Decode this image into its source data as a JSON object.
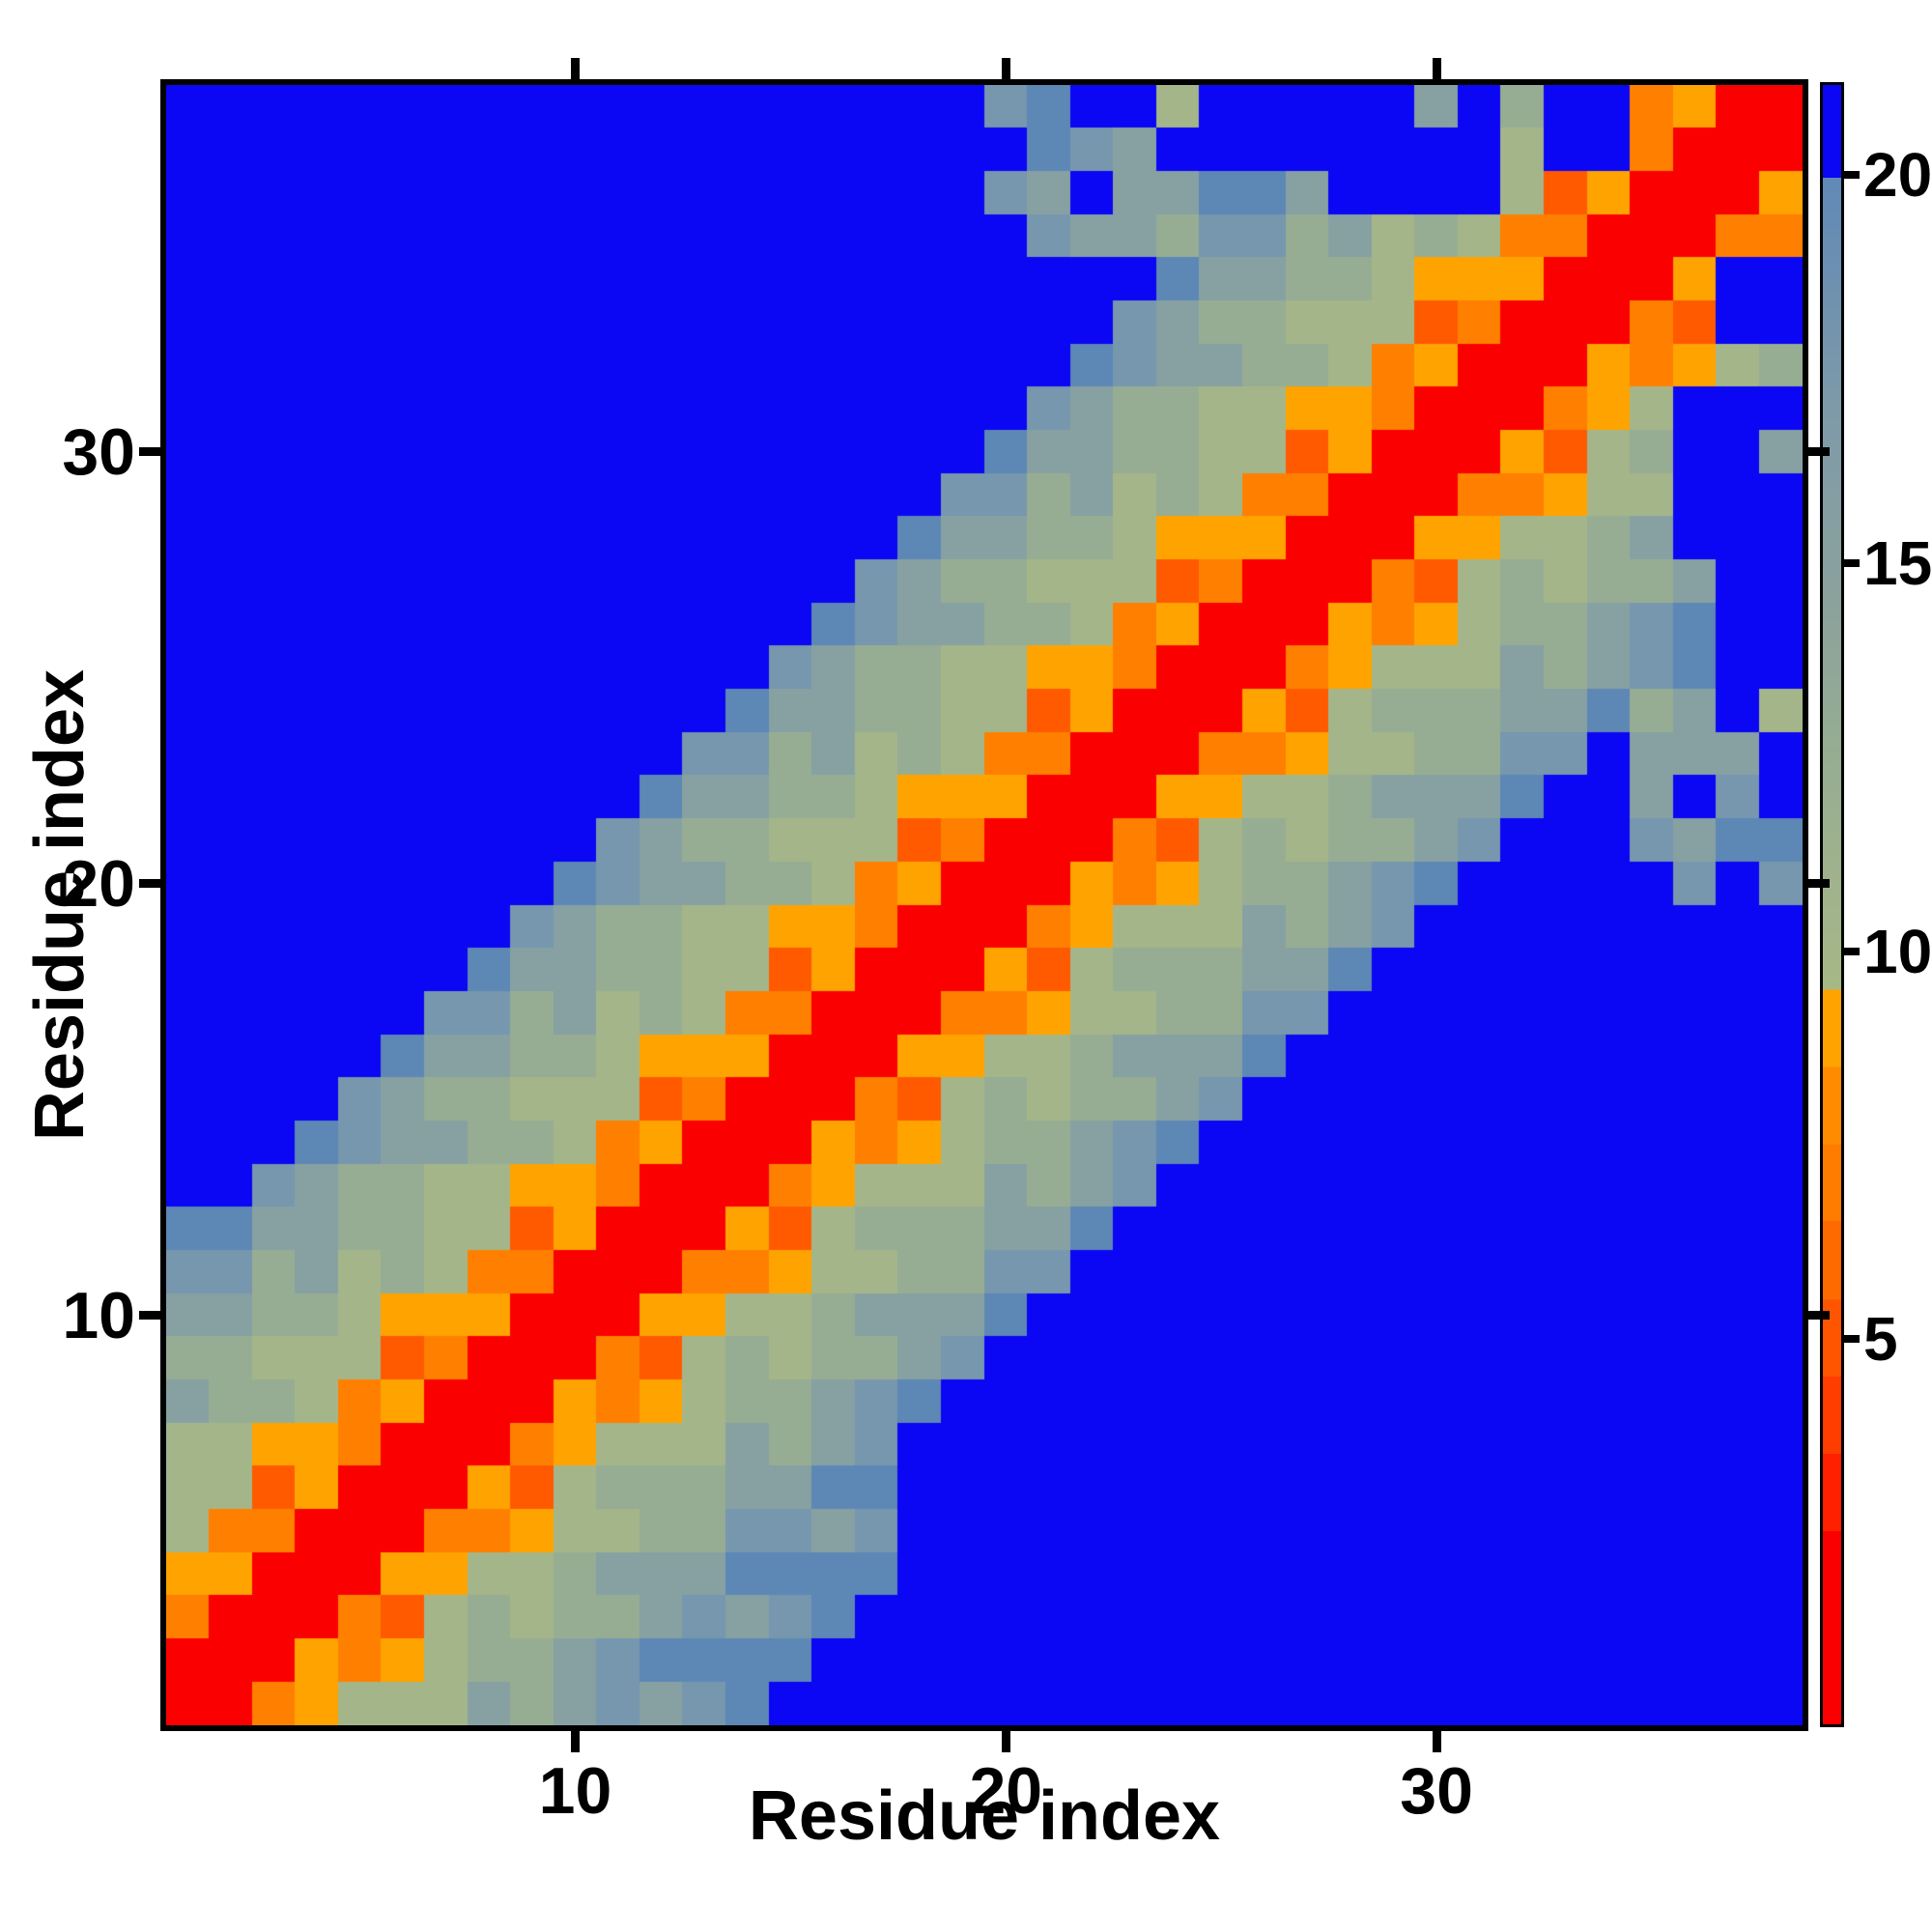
{
  "chart_data": {
    "type": "heatmap",
    "title": "",
    "xlabel": "Residue index",
    "ylabel": "Residue index",
    "n_residues": 38,
    "x_ticks": [
      10,
      20,
      30
    ],
    "y_ticks": [
      10,
      20,
      30
    ],
    "axis_range": [
      0.5,
      38.5
    ],
    "grid": false,
    "colorbar": {
      "position": "right",
      "ticks": [
        5,
        10,
        15,
        20
      ],
      "vmin": 0.0,
      "vmax": 21.2,
      "over_color_note": "values above 20 rendered solid blue",
      "gradient_stops": [
        [
          0.0,
          "#0b06f3"
        ],
        [
          0.0566,
          "#0b06f3"
        ],
        [
          0.0566,
          "#6089b6"
        ],
        [
          0.198,
          "#7e9aa9"
        ],
        [
          0.316,
          "#8ba29c"
        ],
        [
          0.41,
          "#97ad92"
        ],
        [
          0.505,
          "#a1b48b"
        ],
        [
          0.552,
          "#a7b885"
        ],
        [
          0.552,
          "#ffa300"
        ],
        [
          0.599,
          "#ffa300"
        ],
        [
          0.599,
          "#ff8c00"
        ],
        [
          0.646,
          "#ff8c00"
        ],
        [
          0.646,
          "#ff7c00"
        ],
        [
          0.693,
          "#ff7c00"
        ],
        [
          0.693,
          "#ff6a00"
        ],
        [
          0.741,
          "#ff6a00"
        ],
        [
          0.741,
          "#ff5500"
        ],
        [
          0.788,
          "#ff5500"
        ],
        [
          0.788,
          "#ff3d00"
        ],
        [
          0.835,
          "#ff3d00"
        ],
        [
          0.835,
          "#ff2000"
        ],
        [
          0.882,
          "#ff2000"
        ],
        [
          0.882,
          "#fb0000"
        ],
        [
          1.0,
          "#fb0000"
        ]
      ]
    },
    "palette": {
      "R": {
        "color": "#fb0000",
        "approx_value": 2.0
      },
      "o": {
        "color": "#ff5a00",
        "approx_value": 5.0
      },
      "O": {
        "color": "#ff8000",
        "approx_value": 6.5
      },
      "A": {
        "color": "#ffa300",
        "approx_value": 8.5
      },
      "s": {
        "color": "#a4b689",
        "approx_value": 10.5
      },
      "S": {
        "color": "#96ad93",
        "approx_value": 12.5
      },
      "g": {
        "color": "#87a1a3",
        "approx_value": 14.5
      },
      "T": {
        "color": "#7697ae",
        "approx_value": 17.0
      },
      "U": {
        "color": "#5d87b5",
        "approx_value": 18.5
      },
      "B": {
        "color": "#0b06f3",
        "approx_value": 23.0
      }
    },
    "matrix_row_order": "first string = residue 38 (top row), last = residue 1 (bottom); chars = columns 1..38 left to right",
    "matrix": [
      "BBBBBBBBBBBBBBBBBBBTUBBsBBBBBgBSBBOARR",
      "BBBBBBBBBBBBBBBBBBBBUTgBBBBBBBBsBBORRR",
      "BBBBBBBBBBBBBBBBBBBTgBggUUgBBBBsoARRRA",
      "BBBBBBBBBBBBBBBBBBBBTggSTTSgsSsOORRROO",
      "BBBBBBBBBBBBBBBBBBBBBBBUggSSsAAARRRABB",
      "BBBBBBBBBBBBBBBBBBBBBBTgSSsssoORRROoBB",
      "BBBBBBBBBBBBBBBBBBBBBUTggSSsOARRRAOAsS",
      "BBBBBBBBBBBBBBBBBBBBTgSSssAAORRROAsBBB",
      "BBBBBBBBBBBBBBBBBBBUggSSssoARRRAosSBBg",
      "BBBBBBBBBBBBBBBBBBTTSgsSsOORRROOAssBBB",
      "BBBBBBBBBBBBBBBBBUggSSsAAARRRAAssSgBBB",
      "BBBBBBBBBBBBBBBBTgSSsssoORRROosSsSSgBB",
      "BBBBBBBBBBBBBBBUTggSSsOARRRAOAsSSgTUBB",
      "BBBBBBBBBBBBBBTgSSssAAORRROAsssgSgTUBB",
      "BBBBBBBBBBBBBUggSSssoARRRAosSSSggUSgBs",
      "BBBBBBBBBBBBTTSgsSsOORRROOAssSSTTBgggB",
      "BBBBBBBBBBBUggSSsAAARRRAAssSgggUBBgBTB",
      "BBBBBBBBBBTgSSsssoORRROosSsSSgTBBBTgUU",
      "BBBBBBBBBUTggSSsOARRRAOAsSSgTUBBBBBTBT",
      "BBBBBBBBTgSSssAAORRROAsssgSgTBBBBBBBBB",
      "BBBBBBBUggSSssoARRRAosSSSggUBBBBBBBBBB",
      "BBBBBBTTSgsSsOORRROOAssSSTTBBBBBBBBBBB",
      "BBBBBUggSSsAAARRRAAssSgggUBBBBBBBBBBBB",
      "BBBBTgSSsssoORRROosSsSSgTBBBBBBBBBBBBB",
      "BBBUTggSSsOARRRAOAsSSgTUBBBBBBBBBBBBBB",
      "BBTgSSssAAORRROAsssgSgTBBBBBBBBBBBBBBB",
      "UUggSSssoARRRAosSSSggUBBBBBBBBBBBBBBBB",
      "TTSgsSsOORRROOAssSSTTBBBBBBBBBBBBBBBBB",
      "ggSSsAAARRRAAssSgggUBBBBBBBBBBBBBBBBBB",
      "SSsssoORRROosSsSSgTBBBBBBBBBBBBBBBBBBB",
      "gSSsOARRRAOAsSSgTUBBBBBBBBBBBBBBBBBBBB",
      "ssAAORRROAsssgSgTBBBBBBBBBBBBBBBBBBBBB",
      "ssoARRRAosSSSggUUBBBBBBBBBBBBBBBBBBBBB",
      "sOORRROOAssSSTTgTBBBBBBBBBBBBBBBBBBBBB",
      "AARRRAAssSgggUUUUBBBBBBBBBBBBBBBBBBBBB",
      "ORRROosSsSSgTgTUBBBBBBBBBBBBBBBBBBBBBB",
      "RRRAOAsSSgTUUUUBBBBBBBBBBBBBBBBBBBBBBB",
      "RROAsssgSgTgTUBBBBBBBBBBBBBBBBBBBBBBBB"
    ]
  }
}
